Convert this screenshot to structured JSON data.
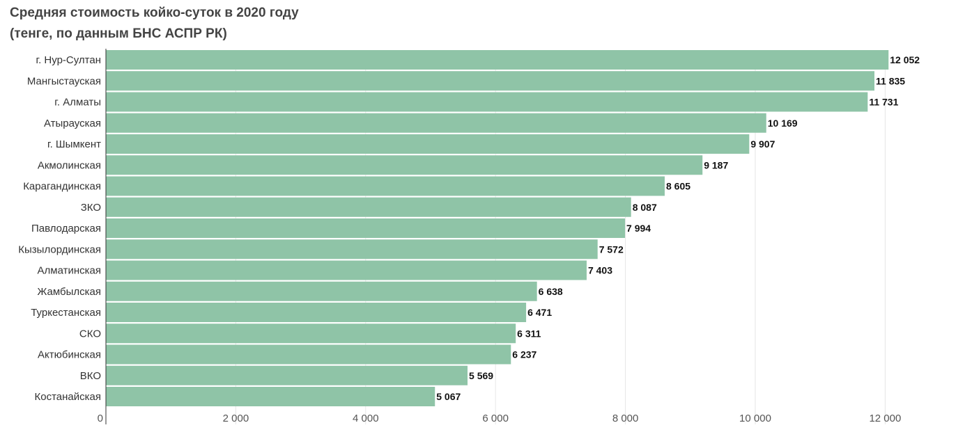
{
  "chart_data": {
    "type": "bar",
    "orientation": "horizontal",
    "title": "Средняя стоимость койко-суток в 2020 году",
    "subtitle": "(тенге, по данным БНС АСПР РК)",
    "categories": [
      "г. Нур-Султан",
      "Мангыстауская",
      "г. Алматы",
      "Атырауская",
      "г. Шымкент",
      "Акмолинская",
      "Карагандинская",
      "ЗКО",
      "Павлодарская",
      "Кызылординская",
      "Алматинская",
      "Жамбылская",
      "Туркестанская",
      "СКО",
      "Актюбинская",
      "ВКО",
      "Костанайская"
    ],
    "values": [
      12052,
      11835,
      11731,
      10169,
      9907,
      9187,
      8605,
      8087,
      7994,
      7572,
      7403,
      6638,
      6471,
      6311,
      6237,
      5569,
      5067
    ],
    "value_labels": [
      "12 052",
      "11 835",
      "11 731",
      "10 169",
      "9 907",
      "9 187",
      "8 605",
      "8 087",
      "7 994",
      "7 572",
      "7 403",
      "6 638",
      "6 471",
      "6 311",
      "6 237",
      "5 569",
      "5 067"
    ],
    "xlim": [
      0,
      12000
    ],
    "x_ticks": [
      0,
      2000,
      4000,
      6000,
      8000,
      10000,
      12000
    ],
    "x_tick_labels": [
      "0",
      "2 000",
      "4 000",
      "6 000",
      "8 000",
      "10 000",
      "12 000"
    ],
    "grid": true,
    "bar_color": "#8fc4a7",
    "xlabel": "",
    "ylabel": ""
  }
}
